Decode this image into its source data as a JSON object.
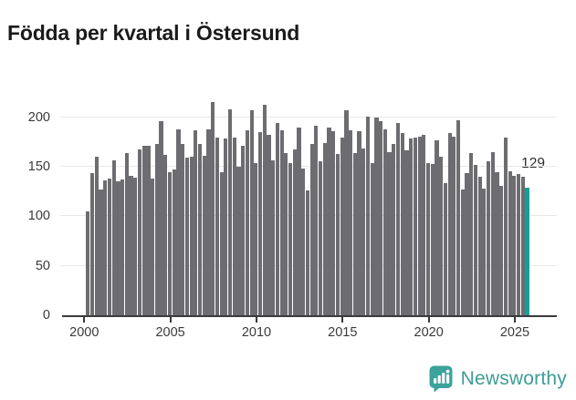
{
  "title": "Födda per kvartal i Östersund",
  "chart_data": {
    "type": "bar",
    "title": "Födda per kvartal i Östersund",
    "x_unit": "quarter",
    "start_period": "2000 Q1",
    "end_period": "2025 Q3",
    "values": [
      105,
      144,
      160,
      127,
      136,
      138,
      157,
      135,
      137,
      164,
      141,
      139,
      168,
      171,
      171,
      138,
      173,
      196,
      162,
      145,
      147,
      188,
      173,
      159,
      160,
      187,
      173,
      161,
      188,
      216,
      180,
      145,
      179,
      208,
      180,
      150,
      171,
      187,
      207,
      154,
      185,
      213,
      182,
      157,
      194,
      187,
      164,
      154,
      168,
      190,
      148,
      126,
      173,
      192,
      156,
      174,
      190,
      186,
      163,
      180,
      207,
      187,
      164,
      186,
      169,
      201,
      154,
      200,
      196,
      188,
      165,
      173,
      194,
      184,
      167,
      179,
      180,
      181,
      182,
      154,
      153,
      177,
      160,
      134,
      184,
      181,
      197,
      127,
      144,
      164,
      152,
      140,
      128,
      156,
      165,
      145,
      131,
      180,
      146,
      141,
      143,
      140,
      129
    ],
    "highlight": {
      "period": "2025 Q3",
      "value": 129,
      "label": "129"
    },
    "yticks": [
      0,
      50,
      100,
      150,
      200
    ],
    "ylim": [
      0,
      222
    ],
    "x_tick_years": [
      "2000",
      "2005",
      "2010",
      "2015",
      "2020",
      "2025"
    ],
    "grid": "horizontal",
    "legend": "none",
    "colors": {
      "bar": "#6d6d71",
      "highlight": "#0da19b",
      "grid": "#e8e8e8",
      "axis": "#3a3a3a"
    }
  },
  "logo": {
    "text": "Newsworthy",
    "icon": "newsworthy-bubble-chart-icon",
    "color": "#3e9d95"
  }
}
